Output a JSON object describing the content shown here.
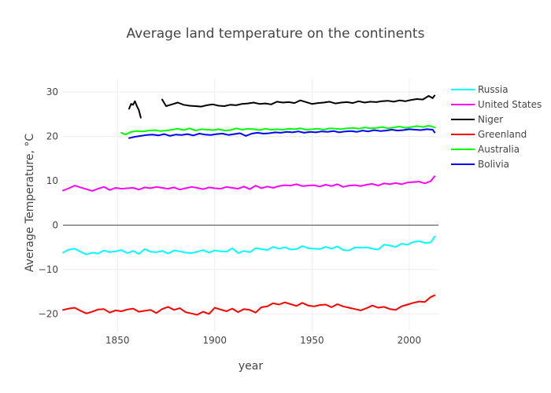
{
  "chart_data": {
    "type": "line",
    "title": "Average land temperature on the continents",
    "xlabel": "year",
    "ylabel": "Average Temperature, °C",
    "xlim": [
      1822,
      2015
    ],
    "ylim": [
      -24,
      33
    ],
    "xticks": [
      1850,
      1900,
      1950,
      2000
    ],
    "yticks": [
      -20,
      -10,
      0,
      10,
      20,
      30
    ],
    "tick_labels": {
      "x": [
        "1850",
        "1900",
        "1950",
        "2000"
      ],
      "y": [
        "−20",
        "−10",
        "0",
        "10",
        "20",
        "30"
      ]
    },
    "grid": true,
    "zero_line": true,
    "legend_position": "top-right",
    "series": [
      {
        "name": "Russia",
        "color": "#00ffff",
        "x": [
          1822,
          1825,
          1828,
          1831,
          1834,
          1837,
          1840,
          1843,
          1846,
          1849,
          1852,
          1855,
          1858,
          1861,
          1864,
          1867,
          1870,
          1873,
          1876,
          1879,
          1882,
          1885,
          1888,
          1891,
          1894,
          1897,
          1900,
          1903,
          1906,
          1909,
          1912,
          1915,
          1918,
          1921,
          1924,
          1927,
          1930,
          1933,
          1936,
          1939,
          1942,
          1945,
          1948,
          1951,
          1954,
          1957,
          1960,
          1963,
          1966,
          1969,
          1972,
          1975,
          1978,
          1981,
          1984,
          1987,
          1990,
          1993,
          1996,
          1999,
          2002,
          2005,
          2008,
          2011,
          2013
        ],
        "y": [
          -6.2,
          -5.5,
          -5.3,
          -6.0,
          -6.6,
          -6.2,
          -6.4,
          -5.7,
          -6.1,
          -5.9,
          -5.6,
          -6.3,
          -5.8,
          -6.5,
          -5.4,
          -6.0,
          -6.1,
          -5.8,
          -6.4,
          -5.7,
          -5.9,
          -6.2,
          -6.3,
          -6.0,
          -5.6,
          -6.2,
          -5.7,
          -5.9,
          -6.0,
          -5.2,
          -6.3,
          -5.8,
          -6.1,
          -5.2,
          -5.4,
          -5.6,
          -4.9,
          -5.3,
          -5.0,
          -5.5,
          -5.4,
          -4.7,
          -5.2,
          -5.3,
          -5.4,
          -4.9,
          -5.3,
          -4.8,
          -5.6,
          -5.7,
          -5.0,
          -5.1,
          -5.0,
          -5.3,
          -5.5,
          -4.4,
          -4.6,
          -4.9,
          -4.2,
          -4.4,
          -3.8,
          -3.6,
          -4.0,
          -3.9,
          -2.6
        ]
      },
      {
        "name": "United States",
        "color": "#ff00ff",
        "x": [
          1822,
          1825,
          1828,
          1831,
          1834,
          1837,
          1840,
          1843,
          1846,
          1849,
          1852,
          1855,
          1858,
          1861,
          1864,
          1867,
          1870,
          1873,
          1876,
          1879,
          1882,
          1885,
          1888,
          1891,
          1894,
          1897,
          1900,
          1903,
          1906,
          1909,
          1912,
          1915,
          1918,
          1921,
          1924,
          1927,
          1930,
          1933,
          1936,
          1939,
          1942,
          1945,
          1948,
          1951,
          1954,
          1957,
          1960,
          1963,
          1966,
          1969,
          1972,
          1975,
          1978,
          1981,
          1984,
          1987,
          1990,
          1993,
          1996,
          1999,
          2002,
          2005,
          2008,
          2011,
          2013
        ],
        "y": [
          7.8,
          8.3,
          8.9,
          8.5,
          8.1,
          7.7,
          8.2,
          8.6,
          7.9,
          8.4,
          8.2,
          8.3,
          8.4,
          8.0,
          8.5,
          8.3,
          8.6,
          8.4,
          8.2,
          8.5,
          8.0,
          8.3,
          8.6,
          8.4,
          8.1,
          8.5,
          8.3,
          8.2,
          8.6,
          8.4,
          8.2,
          8.7,
          8.1,
          8.9,
          8.3,
          8.7,
          8.4,
          8.8,
          9.0,
          8.9,
          9.2,
          8.8,
          8.9,
          9.0,
          8.7,
          9.1,
          8.8,
          9.2,
          8.6,
          8.9,
          9.0,
          8.8,
          9.1,
          9.3,
          8.9,
          9.4,
          9.2,
          9.5,
          9.2,
          9.6,
          9.7,
          9.8,
          9.4,
          9.9,
          11.0
        ]
      },
      {
        "name": "Niger",
        "color": "#000000",
        "segments": [
          {
            "x": [
              1856,
              1857,
              1858,
              1859,
              1860,
              1861,
              1862
            ],
            "y": [
              26.2,
              27.3,
              27.1,
              27.9,
              26.8,
              25.9,
              24.2
            ]
          },
          {
            "x": [
              1873,
              1875,
              1878,
              1881,
              1884,
              1887,
              1890,
              1893,
              1896,
              1899,
              1902,
              1905,
              1908,
              1911,
              1914,
              1917,
              1920,
              1923,
              1926,
              1929,
              1932,
              1935,
              1938,
              1941,
              1944,
              1947,
              1950,
              1953,
              1956,
              1959,
              1962,
              1965,
              1968,
              1971,
              1974,
              1977,
              1980,
              1983,
              1986,
              1989,
              1992,
              1995,
              1998,
              2001,
              2004,
              2007,
              2010,
              2012,
              2013
            ],
            "y": [
              28.3,
              26.8,
              27.2,
              27.6,
              27.1,
              26.9,
              26.8,
              26.7,
              27.0,
              27.2,
              26.9,
              26.8,
              27.1,
              27.0,
              27.3,
              27.4,
              27.6,
              27.3,
              27.4,
              27.2,
              27.8,
              27.6,
              27.7,
              27.5,
              28.1,
              27.7,
              27.3,
              27.5,
              27.6,
              27.8,
              27.4,
              27.6,
              27.7,
              27.5,
              27.9,
              27.6,
              27.8,
              27.7,
              27.9,
              28.0,
              27.8,
              28.1,
              27.9,
              28.2,
              28.4,
              28.3,
              29.1,
              28.6,
              29.2
            ]
          }
        ]
      },
      {
        "name": "Greenland",
        "color": "#ff0000",
        "x": [
          1822,
          1825,
          1828,
          1831,
          1834,
          1837,
          1840,
          1843,
          1846,
          1849,
          1852,
          1855,
          1858,
          1861,
          1864,
          1867,
          1870,
          1873,
          1876,
          1879,
          1882,
          1885,
          1888,
          1891,
          1894,
          1897,
          1900,
          1903,
          1906,
          1909,
          1912,
          1915,
          1918,
          1921,
          1924,
          1927,
          1930,
          1933,
          1936,
          1939,
          1942,
          1945,
          1948,
          1951,
          1954,
          1957,
          1960,
          1963,
          1966,
          1969,
          1972,
          1975,
          1978,
          1981,
          1984,
          1987,
          1990,
          1993,
          1996,
          1999,
          2002,
          2005,
          2008,
          2011,
          2013
        ],
        "y": [
          -19.1,
          -18.8,
          -18.6,
          -19.3,
          -19.9,
          -19.5,
          -19.0,
          -18.9,
          -19.7,
          -19.2,
          -19.4,
          -19.0,
          -18.8,
          -19.5,
          -19.3,
          -19.1,
          -19.8,
          -18.9,
          -18.4,
          -19.1,
          -18.7,
          -19.6,
          -19.9,
          -20.2,
          -19.5,
          -20.0,
          -18.6,
          -19.0,
          -19.4,
          -18.8,
          -19.6,
          -18.9,
          -19.1,
          -19.7,
          -18.5,
          -18.3,
          -17.6,
          -17.9,
          -17.4,
          -17.8,
          -18.2,
          -17.5,
          -18.1,
          -18.3,
          -18.0,
          -17.9,
          -18.5,
          -17.8,
          -18.3,
          -18.6,
          -18.9,
          -19.2,
          -18.7,
          -18.1,
          -18.6,
          -18.4,
          -18.9,
          -19.1,
          -18.3,
          -17.9,
          -17.5,
          -17.2,
          -17.3,
          -16.2,
          -15.8
        ]
      },
      {
        "name": "Australia",
        "color": "#00ff00",
        "x": [
          1852,
          1854,
          1857,
          1860,
          1863,
          1866,
          1869,
          1872,
          1875,
          1878,
          1881,
          1884,
          1887,
          1890,
          1893,
          1896,
          1899,
          1902,
          1905,
          1908,
          1911,
          1914,
          1917,
          1920,
          1923,
          1926,
          1929,
          1932,
          1935,
          1938,
          1941,
          1944,
          1947,
          1950,
          1953,
          1956,
          1959,
          1962,
          1965,
          1968,
          1971,
          1974,
          1977,
          1980,
          1983,
          1986,
          1989,
          1992,
          1995,
          1998,
          2001,
          2004,
          2007,
          2010,
          2013
        ],
        "y": [
          20.8,
          20.4,
          21.0,
          21.2,
          21.1,
          21.3,
          21.4,
          21.2,
          21.3,
          21.5,
          21.7,
          21.4,
          21.8,
          21.3,
          21.6,
          21.5,
          21.4,
          21.6,
          21.3,
          21.4,
          21.8,
          21.5,
          21.7,
          21.6,
          21.4,
          21.7,
          21.5,
          21.6,
          21.5,
          21.7,
          21.6,
          21.8,
          21.5,
          21.6,
          21.7,
          21.5,
          21.8,
          21.7,
          21.6,
          21.8,
          21.9,
          21.7,
          22.0,
          21.8,
          21.9,
          22.1,
          21.8,
          22.0,
          22.2,
          21.9,
          22.1,
          22.3,
          22.1,
          22.4,
          22.0
        ]
      },
      {
        "name": "Bolivia",
        "color": "#0000ff",
        "x": [
          1856,
          1859,
          1862,
          1865,
          1868,
          1871,
          1874,
          1877,
          1880,
          1883,
          1886,
          1889,
          1892,
          1895,
          1898,
          1901,
          1904,
          1907,
          1910,
          1913,
          1916,
          1919,
          1922,
          1925,
          1928,
          1931,
          1934,
          1937,
          1940,
          1943,
          1946,
          1949,
          1952,
          1955,
          1958,
          1961,
          1964,
          1967,
          1970,
          1973,
          1976,
          1979,
          1982,
          1985,
          1988,
          1991,
          1994,
          1997,
          2000,
          2003,
          2006,
          2009,
          2012,
          2013
        ],
        "y": [
          19.6,
          19.9,
          20.1,
          20.3,
          20.4,
          20.2,
          20.5,
          20.1,
          20.4,
          20.3,
          20.5,
          20.2,
          20.6,
          20.4,
          20.3,
          20.5,
          20.6,
          20.3,
          20.5,
          20.7,
          20.1,
          20.6,
          20.8,
          20.6,
          20.7,
          20.9,
          20.8,
          21.0,
          20.9,
          21.1,
          20.8,
          21.0,
          20.9,
          21.1,
          21.0,
          21.2,
          20.9,
          21.1,
          21.2,
          21.0,
          21.3,
          21.1,
          21.4,
          21.2,
          21.3,
          21.5,
          21.3,
          21.4,
          21.6,
          21.5,
          21.4,
          21.6,
          21.5,
          20.9
        ]
      }
    ]
  }
}
